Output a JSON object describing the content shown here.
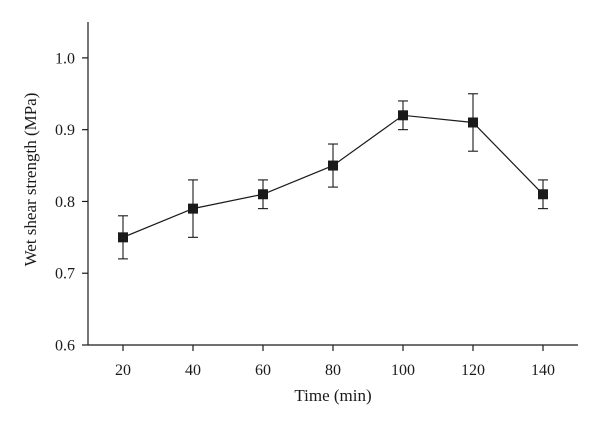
{
  "chart_data": {
    "type": "line",
    "title": "",
    "xlabel": "Time (min)",
    "ylabel": "Wet shear strength (MPa)",
    "xlim": [
      10,
      150
    ],
    "ylim": [
      0.6,
      1.05
    ],
    "x_ticks": [
      20,
      40,
      60,
      80,
      100,
      120,
      140
    ],
    "x_tick_labels": [
      "20",
      "40",
      "60",
      "80",
      "100",
      "120",
      "140"
    ],
    "y_ticks": [
      0.6,
      0.7,
      0.8,
      0.9,
      1.0
    ],
    "y_tick_labels": [
      "0.6",
      "0.7",
      "0.8",
      "0.9",
      "1.0"
    ],
    "grid": false,
    "legend": "none",
    "marker": "square",
    "series": [
      {
        "x": [
          20,
          40,
          60,
          80,
          100,
          120,
          140
        ],
        "y": [
          0.75,
          0.79,
          0.81,
          0.85,
          0.92,
          0.91,
          0.81
        ],
        "error_low": [
          0.72,
          0.75,
          0.79,
          0.82,
          0.9,
          0.87,
          0.79
        ],
        "error_high": [
          0.78,
          0.83,
          0.83,
          0.88,
          0.94,
          0.95,
          0.83
        ],
        "color": "#1a1a1a"
      }
    ]
  }
}
